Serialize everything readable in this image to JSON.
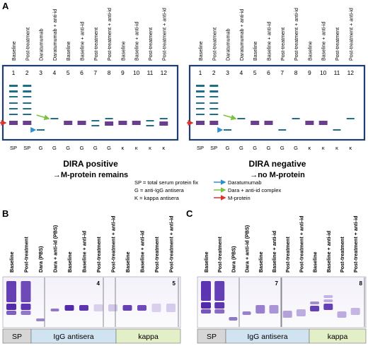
{
  "panel_labels": {
    "a": "A",
    "b": "B",
    "c": "C"
  },
  "panel_a": {
    "lane_headers": [
      "Baseline",
      "Post-treatment",
      "Daratumumab",
      "Daratumumab + anti-id",
      "Baseline",
      "Baseline + anti-id",
      "Post-treatment",
      "Post-treatment + anti-id",
      "Baseline",
      "Baseline + anti-id",
      "Post-treatment",
      "Post-treatment + anti-id"
    ],
    "lane_numbers": [
      "1",
      "2",
      "3",
      "4",
      "5",
      "6",
      "7",
      "8",
      "9",
      "10",
      "11",
      "12"
    ],
    "lane_antisera": [
      "SP",
      "SP",
      "G",
      "G",
      "G",
      "G",
      "G",
      "G",
      "κ",
      "κ",
      "κ",
      "κ"
    ],
    "left_gel": {
      "title": "DIRA positive",
      "subtitle": "→M-protein remains"
    },
    "right_gel": {
      "title": "DIRA negative",
      "subtitle": "→no M-protein"
    },
    "legend_definitions": [
      "SP = total serum protein fix",
      "G = anti-IgG antisera",
      "K = kappa antisera"
    ],
    "legend_arrows": [
      {
        "label": "Daratumumab",
        "color": "#2e8fcf"
      },
      {
        "label": "Dara + anti-id complex",
        "color": "#7cc242"
      },
      {
        "label": "M-protein",
        "color": "#e0302a"
      }
    ]
  },
  "panel_b": {
    "lane_headers": [
      "Baseline",
      "Post-treatment",
      "Dara (PBS)",
      "Dara + anti-id (PBS)",
      "Baseline",
      "Baseline + anti-id",
      "Post-treatment",
      "Post-treatment + anti-id",
      "Baseline",
      "Baseline + anti-id",
      "Post-treatment",
      "Post-treatment + anti-id"
    ],
    "segment_numbers": [
      "4",
      "5"
    ],
    "bottom_labels": [
      "SP",
      "IgG  antisera",
      "kappa"
    ]
  },
  "panel_c": {
    "lane_headers": [
      "Baseline",
      "Post-treatment",
      "Dara (PBS)",
      "Dara + anti-id (PBS)",
      "Baseline",
      "Baseline + anti-id",
      "Post-treatment",
      "Post-treatment + anti-id",
      "Baseline",
      "Baseline + anti-id",
      "Post-treatment",
      "Post-treatment + anti-id"
    ],
    "segment_numbers": [
      "7",
      "8"
    ],
    "bottom_labels": [
      "SP",
      "IgG  antisera",
      "kappa"
    ]
  },
  "colors": {
    "gel_border": "#1f3f6e",
    "band_teal": "#1f6f8b",
    "band_purple": "#6a3d8f",
    "gel_purple": "#4b1fa8",
    "sp_box": "#d6d6d6",
    "igg_box": "#cfe3f1",
    "kappa_box": "#e3efc7"
  }
}
